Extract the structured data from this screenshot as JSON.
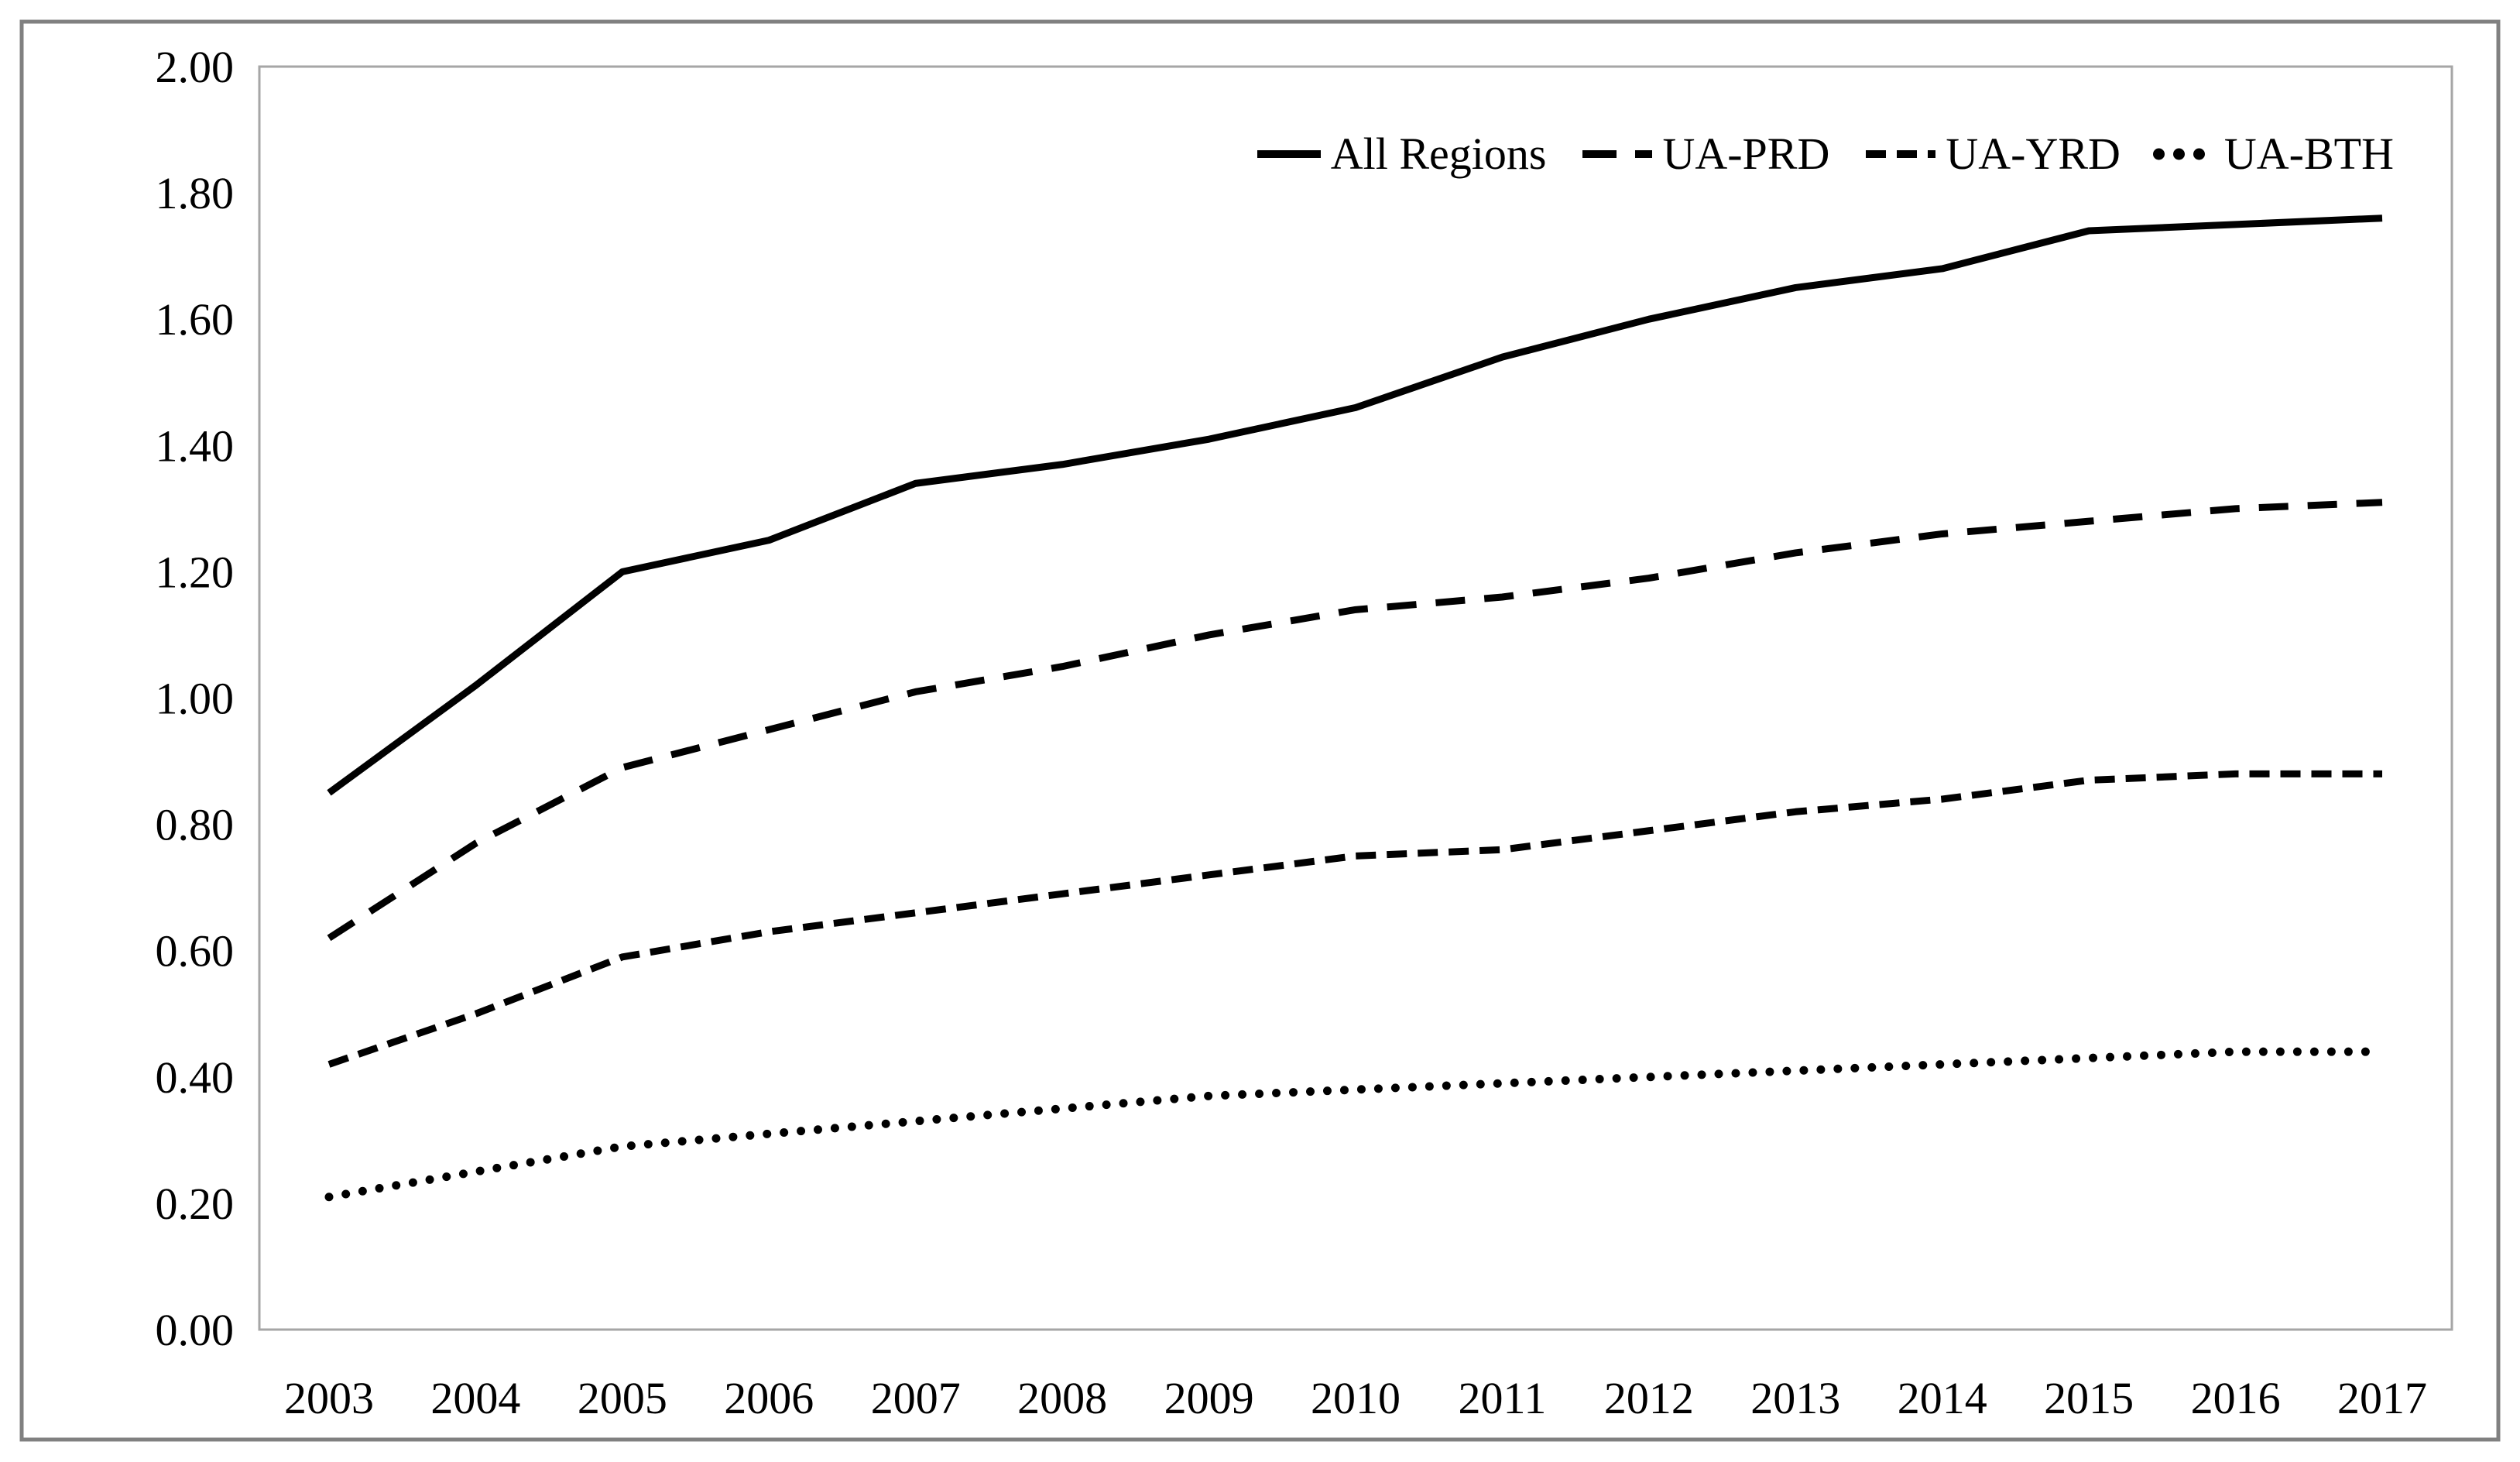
{
  "figure": {
    "background_color": "#ffffff",
    "outer_border_color": "#808080",
    "plot_border_color": "#a6a6a6",
    "series_color": "#000000"
  },
  "chart_data": {
    "type": "line",
    "title": "",
    "xlabel": "",
    "ylabel": "",
    "x": [
      2003,
      2004,
      2005,
      2006,
      2007,
      2008,
      2009,
      2010,
      2011,
      2012,
      2013,
      2014,
      2015,
      2016,
      2017
    ],
    "x_tick_labels": [
      "2003",
      "2004",
      "2005",
      "2006",
      "2007",
      "2008",
      "2009",
      "2010",
      "2011",
      "2012",
      "2013",
      "2014",
      "2015",
      "2016",
      "2017"
    ],
    "ylim": [
      0.0,
      2.0
    ],
    "y_tick_labels": [
      "0.00",
      "0.20",
      "0.40",
      "0.60",
      "0.80",
      "1.00",
      "1.20",
      "1.40",
      "1.60",
      "1.80",
      "2.00"
    ],
    "grid": false,
    "legend_position": "top-right-inside",
    "series": [
      {
        "name": "All Regions",
        "style": "solid",
        "values": [
          0.85,
          1.02,
          1.2,
          1.25,
          1.34,
          1.37,
          1.41,
          1.46,
          1.54,
          1.6,
          1.65,
          1.68,
          1.74,
          1.75,
          1.76
        ]
      },
      {
        "name": "UA-PRD",
        "style": "dash-long",
        "values": [
          0.62,
          0.77,
          0.89,
          0.95,
          1.01,
          1.05,
          1.1,
          1.14,
          1.16,
          1.19,
          1.23,
          1.26,
          1.28,
          1.3,
          1.31
        ]
      },
      {
        "name": "UA-YRD",
        "style": "dash-short",
        "values": [
          0.42,
          0.5,
          0.59,
          0.63,
          0.66,
          0.69,
          0.72,
          0.75,
          0.76,
          0.79,
          0.82,
          0.84,
          0.87,
          0.88,
          0.88
        ]
      },
      {
        "name": "UA-BTH",
        "style": "dot",
        "values": [
          0.21,
          0.25,
          0.29,
          0.31,
          0.33,
          0.35,
          0.37,
          0.38,
          0.39,
          0.4,
          0.41,
          0.42,
          0.43,
          0.44,
          0.44
        ]
      }
    ]
  }
}
